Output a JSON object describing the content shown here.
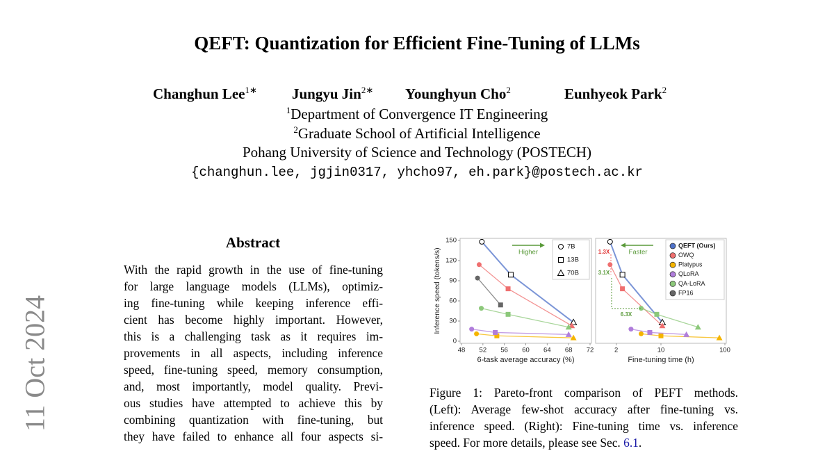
{
  "header": {
    "title": "QEFT: Quantization for Efficient Fine-Tuning of LLMs",
    "authors": [
      {
        "name": "Changhun Lee",
        "sup": "1∗"
      },
      {
        "name": "Jungyu Jin",
        "sup": "2∗"
      },
      {
        "name": "Younghyun Cho",
        "sup": "2"
      },
      {
        "name": "Eunhyeok Park",
        "sup": "2"
      }
    ],
    "affiliations": [
      {
        "sup": "1",
        "text": "Department of Convergence IT Engineering"
      },
      {
        "sup": "2",
        "text": "Graduate School of Artificial Intelligence"
      },
      {
        "text": "Pohang University of Science and Technology (POSTECH)"
      }
    ],
    "emails": "{changhun.lee, jgjin0317, yhcho97, eh.park}@postech.ac.kr"
  },
  "arxiv_stamp": "11 Oct 2024",
  "abstract": {
    "heading": "Abstract",
    "lines": [
      "With the rapid growth in the use of fine-tuning",
      "for large language models (LLMs), optimiz-",
      "ing fine-tuning while keeping inference effi-",
      "cient has become highly important. However,",
      "this is a challenging task as it requires im-",
      "provements in all aspects, including inference",
      "speed, fine-tuning speed, memory consumption,",
      "and, most importantly, model quality. Previ-",
      "ous studies have attempted to achieve this by",
      "combining quantization with fine-tuning, but",
      "they have failed to enhance all four aspects si-"
    ]
  },
  "figure": {
    "caption_lines": [
      "Figure 1: Pareto-front comparison of PEFT methods.",
      "(Left): Average few-shot accuracy after fine-tuning vs.",
      "inference speed. (Right): Fine-tuning time vs. inference"
    ],
    "caption_last": [
      "speed. For more details, please see Sec.",
      "6.1",
      "."
    ]
  },
  "chart_data": [
    {
      "type": "line",
      "xlabel": "6-task average accuracy (%)",
      "ylabel": "Inference speed (tokens/s)",
      "xlim": [
        48,
        72
      ],
      "xticks": [
        48,
        52,
        56,
        60,
        64,
        68,
        72
      ],
      "ylim": [
        0,
        150
      ],
      "yticks": [
        0,
        30,
        60,
        90,
        120,
        150
      ],
      "markers": [
        "circle",
        "square",
        "triangle"
      ],
      "size_legend": [
        "7B",
        "13B",
        "70B"
      ],
      "annotations": [
        "Higher"
      ],
      "series": [
        {
          "color": "#4f72c9",
          "marker_fill": "#ffffff",
          "x": [
            51.8,
            57.2,
            68.9
          ],
          "values": [
            148,
            99,
            28
          ]
        },
        {
          "color": "#ef6f6f",
          "marker_fill": "#ef6f6f",
          "x": [
            51.3,
            56.7,
            68.6
          ],
          "values": [
            114,
            78,
            23
          ]
        },
        {
          "color": "#f5b400",
          "marker_fill": "#f5b400",
          "x": [
            50.8,
            54.6,
            68.9
          ],
          "values": [
            11,
            8,
            5
          ]
        },
        {
          "color": "#b07ddb",
          "marker_fill": "#b07ddb",
          "x": [
            49.9,
            54.3,
            68.0
          ],
          "values": [
            18,
            13,
            10
          ]
        },
        {
          "color": "#8cc87a",
          "marker_fill": "#8cc87a",
          "x": [
            51.7,
            56.7,
            68.0
          ],
          "values": [
            49,
            40,
            21
          ]
        },
        {
          "color": "#666666",
          "marker_fill": "#666666",
          "x": [
            51.0,
            55.3
          ],
          "values": [
            94,
            54
          ]
        }
      ]
    },
    {
      "type": "line",
      "xlabel": "Fine-tuning time (h)",
      "xscale": "log",
      "xlim": [
        1,
        100
      ],
      "xticks": [
        2,
        10,
        100
      ],
      "ylim": [
        0,
        150
      ],
      "markers": [
        "circle",
        "square",
        "triangle"
      ],
      "annotations": [
        "Faster",
        "1.3X",
        "3.1X",
        "6.3X"
      ],
      "series": [
        {
          "name": "QEFT (Ours)",
          "color": "#4f72c9",
          "marker_fill": "#ffffff",
          "x": [
            1.6,
            2.5,
            10.5
          ],
          "values": [
            148,
            99,
            28
          ]
        },
        {
          "name": "OWQ",
          "color": "#ef6f6f",
          "marker_fill": "#ef6f6f",
          "x": [
            1.6,
            2.5,
            10.5
          ],
          "values": [
            114,
            78,
            23
          ]
        },
        {
          "name": "Platypus",
          "color": "#f5b400",
          "marker_fill": "#f5b400",
          "x": [
            4.9,
            10,
            82
          ],
          "values": [
            11,
            8,
            5
          ]
        },
        {
          "name": "QLoRA",
          "color": "#b07ddb",
          "marker_fill": "#b07ddb",
          "x": [
            3.4,
            6.7,
            25
          ],
          "values": [
            18,
            13,
            10
          ]
        },
        {
          "name": "QA-LoRA",
          "color": "#8cc87a",
          "marker_fill": "#8cc87a",
          "x": [
            4.9,
            8.6,
            38
          ],
          "values": [
            49,
            40,
            21
          ]
        },
        {
          "name": "FP16",
          "color": "#666666",
          "marker_fill": "#666666",
          "x": [],
          "values": []
        }
      ]
    }
  ]
}
